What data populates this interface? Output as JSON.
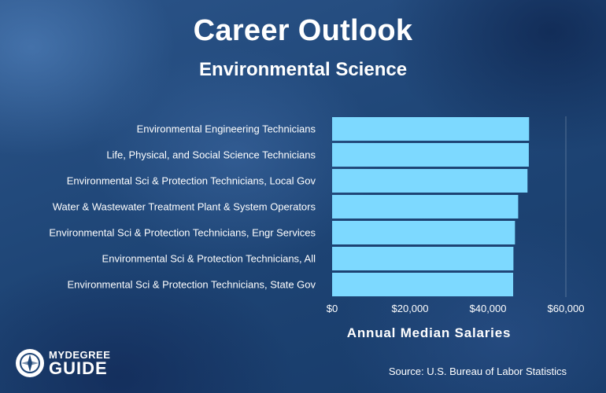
{
  "header": {
    "title": "Career Outlook",
    "subtitle": "Environmental Science"
  },
  "chart_data": {
    "type": "bar",
    "orientation": "horizontal",
    "categories": [
      "Environmental Engineering Technicians",
      "Life, Physical, and Social Science Technicians",
      "Environmental Sci & Protection Technicians, Local Gov",
      "Water & Wastewater Treatment Plant & System Operators",
      "Environmental Sci & Protection Technicians, Engr Services",
      "Environmental Sci & Protection Technicians, All",
      "Environmental Sci & Protection Technicians, State Gov"
    ],
    "values": [
      50560,
      50490,
      50150,
      47760,
      46940,
      46540,
      46470
    ],
    "xlabel": "Annual Median Salaries",
    "xlim": [
      0,
      60000
    ],
    "xticks": [
      0,
      20000,
      40000,
      60000
    ],
    "xtick_labels": [
      "$0",
      "$20,000",
      "$40,000",
      "$60,000"
    ],
    "bar_color": "#7dd9ff",
    "grid": false
  },
  "footer": {
    "source": "Source: U.S. Bureau of Labor Statistics",
    "logo_top": "MYDEGREE",
    "logo_bottom": "GUIDE"
  }
}
